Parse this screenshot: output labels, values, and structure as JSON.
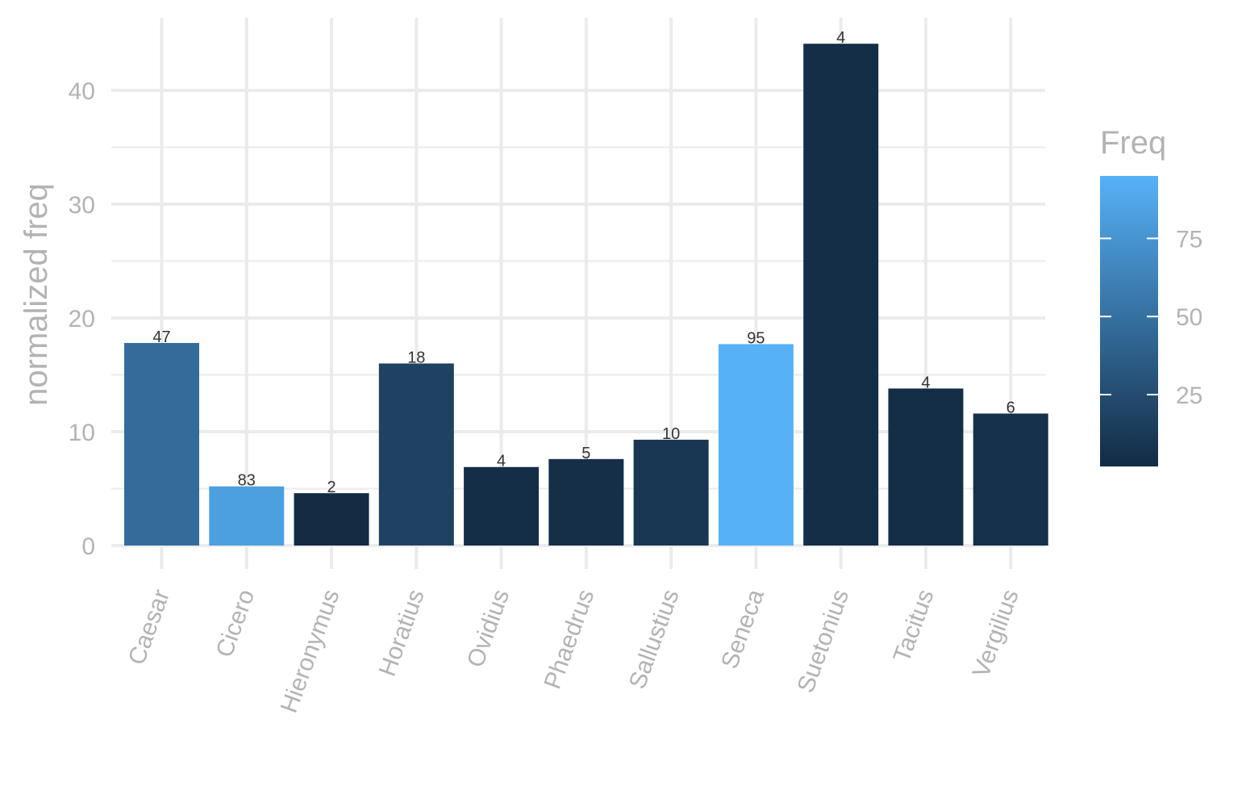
{
  "chart_data": {
    "type": "bar",
    "categories": [
      "Caesar",
      "Cicero",
      "Hieronymus",
      "Horatius",
      "Ovidius",
      "Phaedrus",
      "Sallustius",
      "Seneca",
      "Suetonius",
      "Tacitus",
      "Vergilius"
    ],
    "values": [
      17.8,
      5.2,
      4.6,
      16.0,
      6.9,
      7.6,
      9.3,
      17.7,
      44.1,
      13.8,
      11.6
    ],
    "freq": [
      47,
      83,
      2,
      18,
      4,
      5,
      10,
      95,
      4,
      4,
      6
    ],
    "data_labels": [
      "47",
      "83",
      "2",
      "18",
      "4",
      "5",
      "10",
      "95",
      "4",
      "4",
      "6"
    ],
    "xlabel": "",
    "ylabel": "normalized freq",
    "ylim": [
      0,
      45
    ],
    "yticks": [
      0,
      10,
      20,
      30,
      40
    ],
    "grid": true,
    "legend": {
      "title": "Freq",
      "placement": "right",
      "ticks": [
        25,
        50,
        75
      ],
      "range": [
        2,
        95
      ],
      "color_low": "#132B43",
      "color_high": "#56B1F7"
    }
  }
}
